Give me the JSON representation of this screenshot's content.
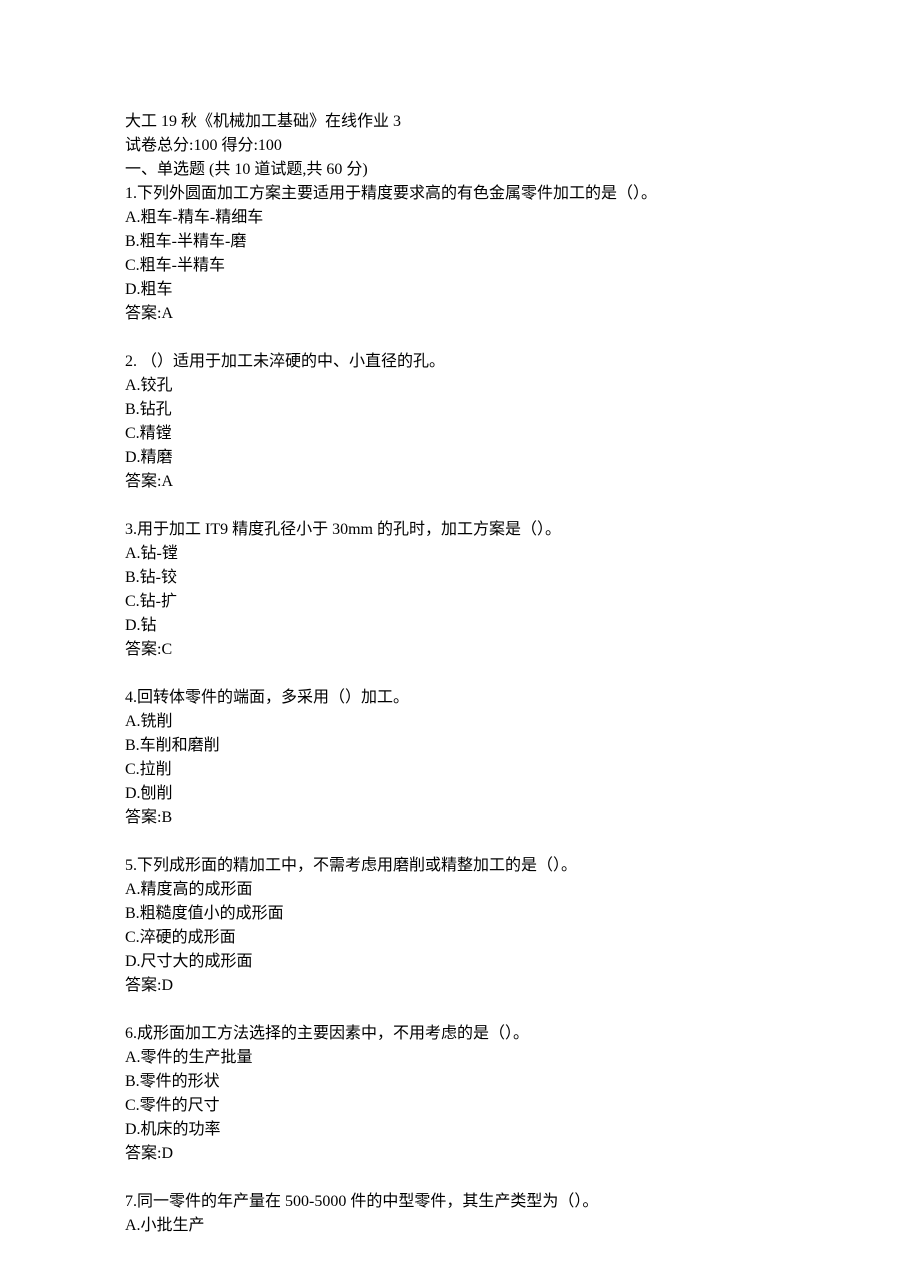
{
  "header": {
    "title": "大工 19 秋《机械加工基础》在线作业 3",
    "score_line": "试卷总分:100  得分:100",
    "section": "一、单选题 (共 10 道试题,共 60 分)"
  },
  "questions": [
    {
      "stem": "1.下列外圆面加工方案主要适用于精度要求高的有色金属零件加工的是（）。",
      "options": [
        "A.粗车-精车-精细车",
        "B.粗车-半精车-磨",
        "C.粗车-半精车",
        "D.粗车"
      ],
      "answer": "答案:A"
    },
    {
      "stem": "2. （）适用于加工未淬硬的中、小直径的孔。",
      "options": [
        "A.铰孔",
        "B.钻孔",
        "C.精镗",
        "D.精磨"
      ],
      "answer": "答案:A"
    },
    {
      "stem": "3.用于加工 IT9 精度孔径小于 30mm 的孔时，加工方案是（）。",
      "options": [
        "A.钻-镗",
        "B.钻-铰",
        "C.钻-扩",
        "D.钻"
      ],
      "answer": "答案:C"
    },
    {
      "stem": "4.回转体零件的端面，多采用（）加工。",
      "options": [
        "A.铣削",
        "B.车削和磨削",
        "C.拉削",
        "D.刨削"
      ],
      "answer": "答案:B"
    },
    {
      "stem": "5.下列成形面的精加工中，不需考虑用磨削或精整加工的是（）。",
      "options": [
        "A.精度高的成形面",
        "B.粗糙度值小的成形面",
        "C.淬硬的成形面",
        "D.尺寸大的成形面"
      ],
      "answer": "答案:D"
    },
    {
      "stem": "6.成形面加工方法选择的主要因素中，不用考虑的是（）。",
      "options": [
        "A.零件的生产批量",
        "B.零件的形状",
        "C.零件的尺寸",
        "D.机床的功率"
      ],
      "answer": "答案:D"
    },
    {
      "stem": "7.同一零件的年产量在 500-5000 件的中型零件，其生产类型为（）。",
      "options": [
        "A.小批生产"
      ],
      "answer": null
    }
  ]
}
